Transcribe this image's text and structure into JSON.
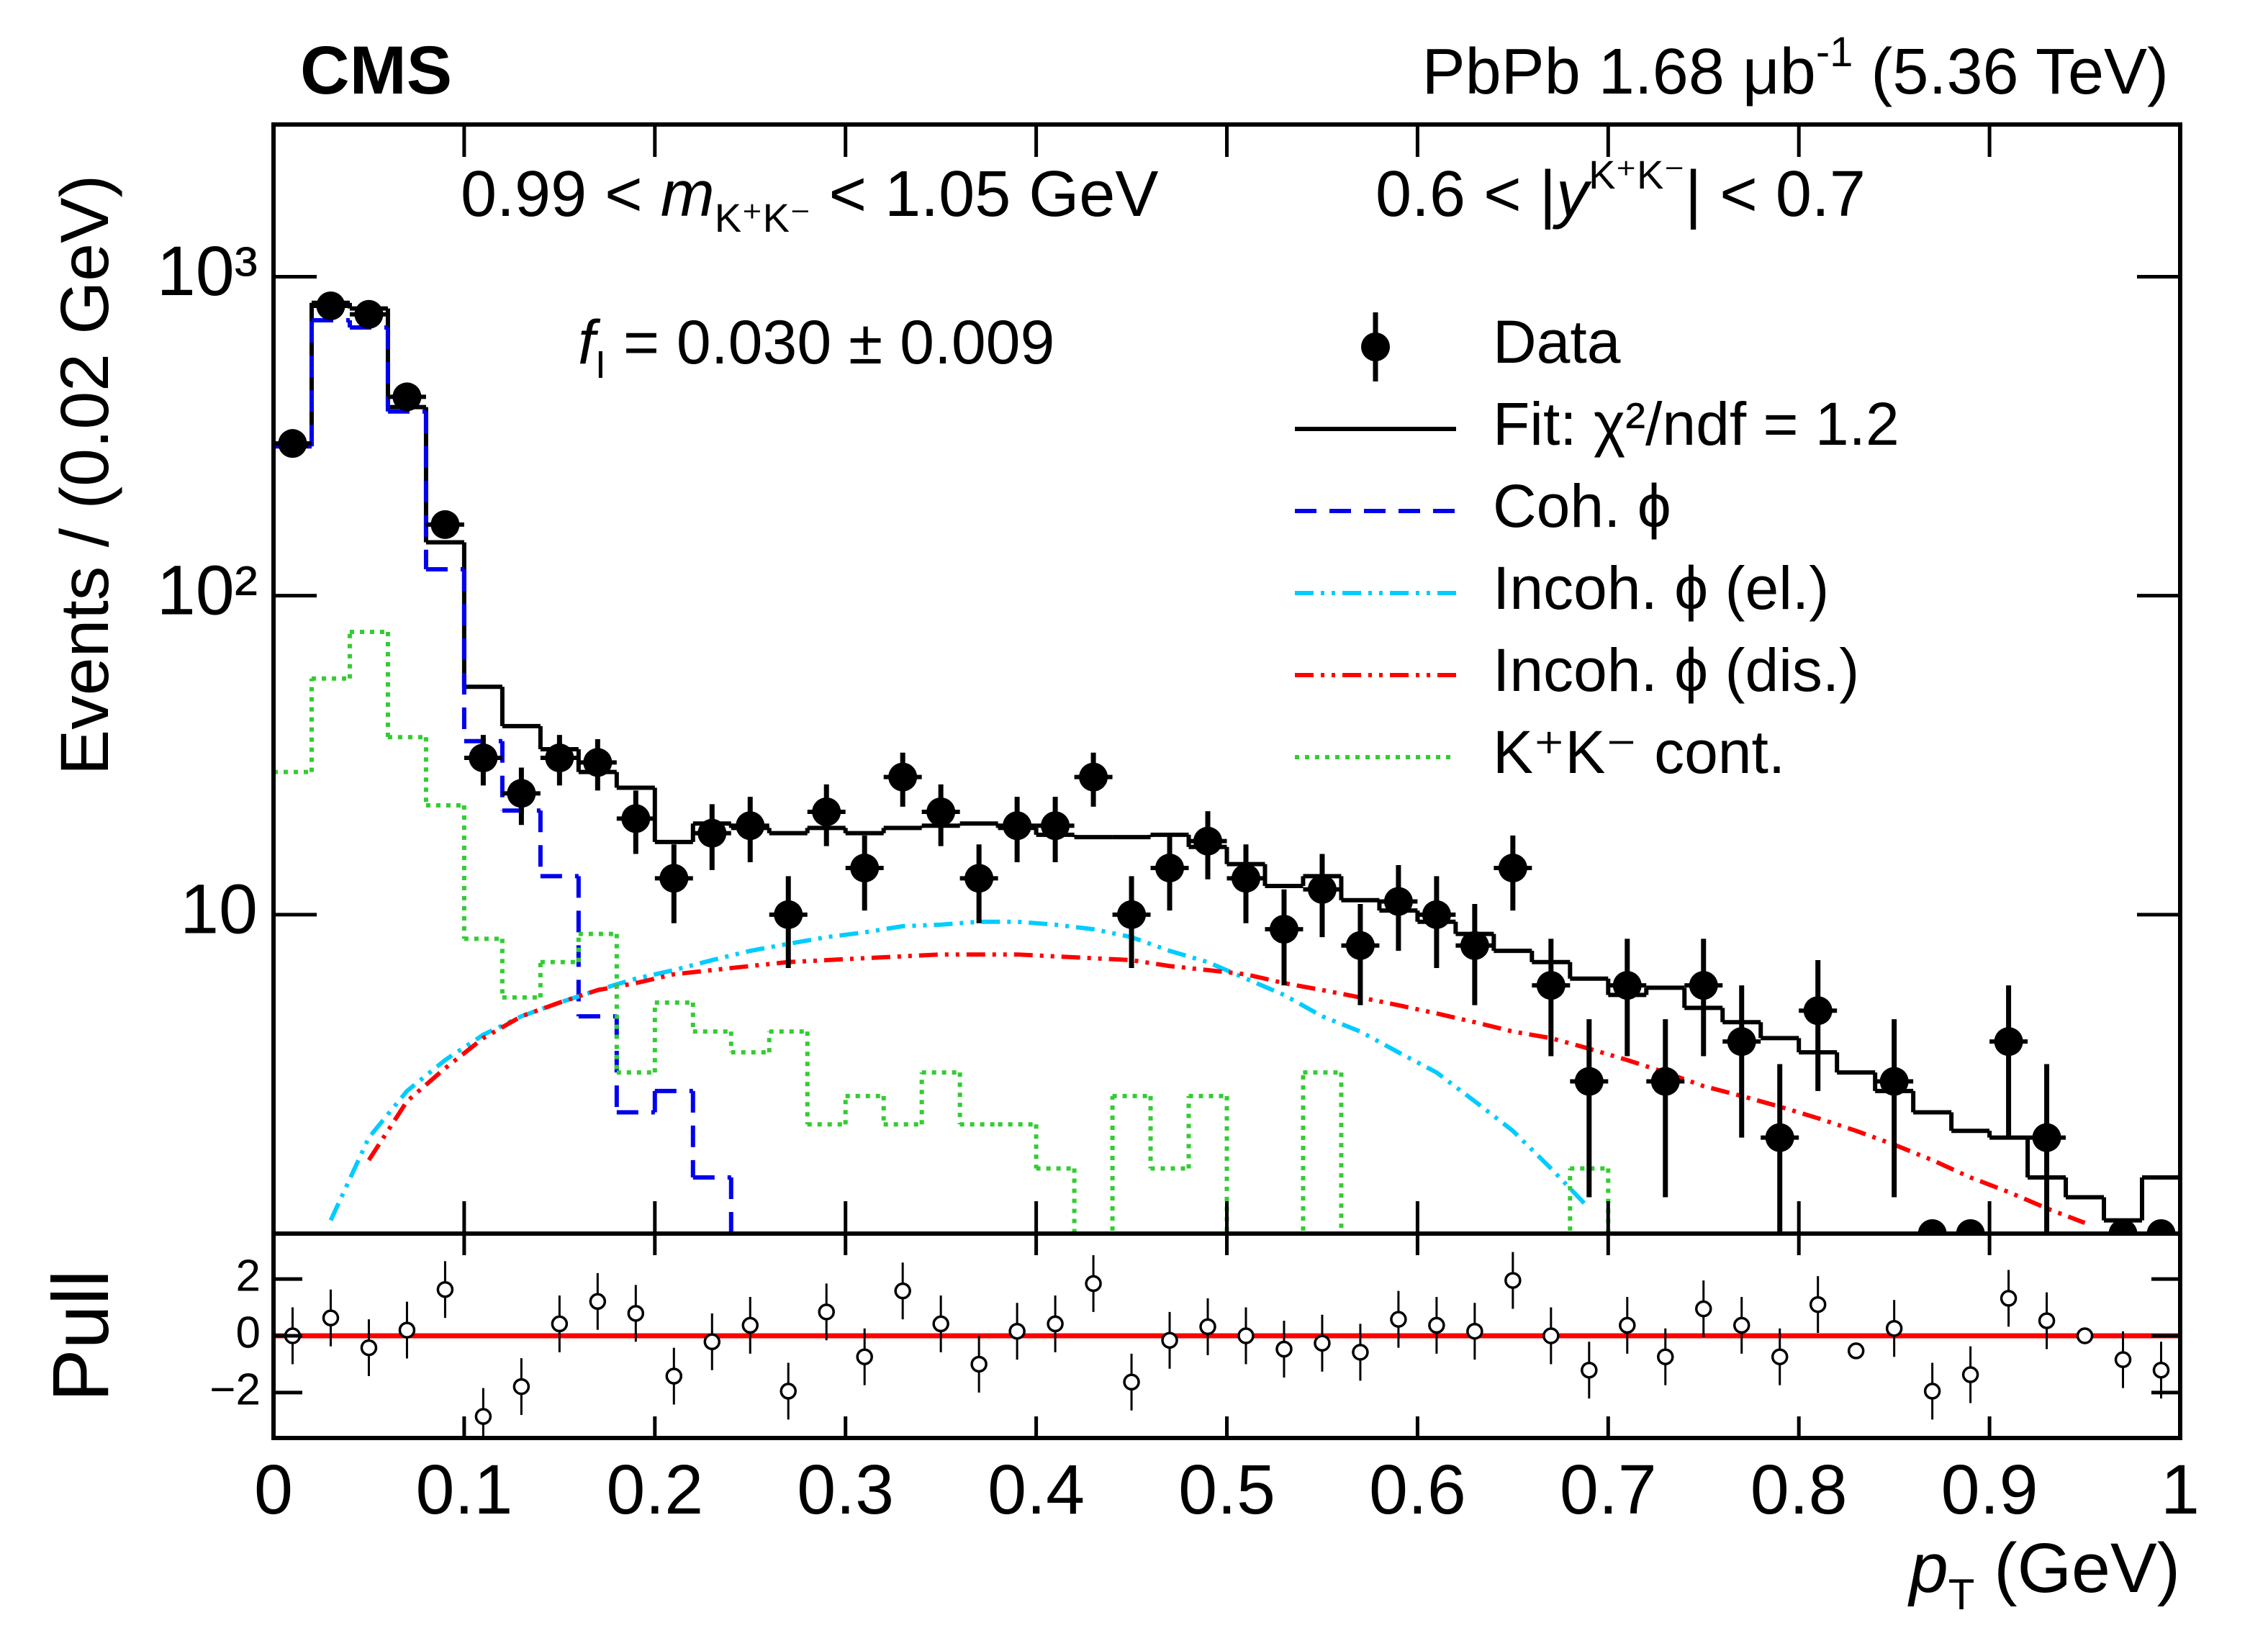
{
  "chart_data": [
    {
      "type": "histogram",
      "title": "CMS",
      "subtitle": [
        "PbPb 1.68 μb",
        "-1",
        " (5.36 TeV)"
      ],
      "annotations": [
        [
          "0.99 < ",
          "m",
          "K⁺K⁻",
          " < 1.05 GeV"
        ],
        [
          "0.6 < |",
          "y",
          "K⁺K⁻",
          "| < 0.7"
        ],
        [
          "f",
          "I",
          " = 0.030 ± 0.009"
        ]
      ],
      "ylabel": "Events / (0.02 GeV)",
      "log_y": true,
      "legend": "upper right",
      "xlim": [
        0,
        1
      ],
      "ylim": [
        1,
        3000
      ],
      "yticks": [
        10,
        {
          "value": 100,
          "label": "10²"
        },
        {
          "value": 1000,
          "label": "10³"
        }
      ],
      "bins": [
        0,
        0.02,
        0.04,
        0.06,
        0.08,
        0.1,
        0.12,
        0.14,
        0.16,
        0.18,
        0.2,
        0.22,
        0.24,
        0.26,
        0.28,
        0.3,
        0.32,
        0.34,
        0.36,
        0.38,
        0.4,
        0.42,
        0.44,
        0.46,
        0.48,
        0.5,
        0.52,
        0.54,
        0.56,
        0.58,
        0.6,
        0.62,
        0.64,
        0.66,
        0.68,
        0.7,
        0.72,
        0.74,
        0.76,
        0.78,
        0.8,
        0.82,
        0.84,
        0.86,
        0.88,
        0.9,
        0.92,
        0.94,
        0.96,
        0.98,
        1
      ],
      "series": [
        {
          "name": "Data",
          "color": "#000000",
          "style": "points",
          "values": [
            300,
            810,
            762,
            420,
            167,
            31,
            24,
            31,
            30,
            20,
            13,
            18,
            19,
            10,
            21,
            14,
            27,
            21,
            13,
            19,
            19,
            27,
            10,
            14,
            17,
            13,
            9,
            12,
            8,
            11,
            10,
            8,
            14,
            6,
            3,
            6,
            3,
            6,
            4,
            2,
            5,
            null,
            3,
            1,
            1,
            4,
            2,
            null,
            1,
            1
          ],
          "errors": [
            17.3,
            28.5,
            27.6,
            20.5,
            12.9,
            5.6,
            4.9,
            5.6,
            5.5,
            4.5,
            3.6,
            4.2,
            4.4,
            3.2,
            4.6,
            3.7,
            5.2,
            4.6,
            3.6,
            4.4,
            4.4,
            5.2,
            3.2,
            3.7,
            4.1,
            3.6,
            3,
            3.5,
            2.8,
            3.3,
            3.2,
            2.8,
            3.7,
            2.4,
            1.7,
            2.4,
            1.7,
            2.4,
            2,
            1.4,
            2.2,
            null,
            1.7,
            0,
            0,
            2,
            1.4,
            null,
            0,
            0
          ]
        },
        {
          "name": "Fit: χ²/ndf = 1.2",
          "color": "#000000",
          "style": "step",
          "dash": "solid",
          "values": [
            294,
            828,
            795,
            390,
            147,
            51.8,
            39,
            33,
            28,
            25,
            16.9,
            19.3,
            18.7,
            18,
            18.7,
            18,
            18.7,
            19,
            19.3,
            18.7,
            17.8,
            17.5,
            17.5,
            17.8,
            16.3,
            14.4,
            12.3,
            13.2,
            11.1,
            10.3,
            9.5,
            8.7,
            7.7,
            7.1,
            6.3,
            5.6,
            5.9,
            5.1,
            4.6,
            4.1,
            3.7,
            3.2,
            2.8,
            2.4,
            2.1,
            2,
            1.5,
            1.3,
            1.1,
            1.5
          ]
        },
        {
          "name": "Coh. ϕ",
          "color": "#0000ee",
          "style": "step",
          "dash": "dashed",
          "values": [
            294,
            730,
            693,
            378,
            121,
            35,
            21.2,
            13.2,
            4.8,
            2.4,
            2.8,
            1.5,
            null,
            null,
            null,
            null,
            null,
            null,
            null,
            null,
            null,
            null,
            null,
            null,
            null,
            null,
            null,
            null,
            null,
            null,
            null,
            null,
            null,
            null,
            null,
            null,
            null,
            null,
            null,
            null,
            null,
            null,
            null,
            null,
            null,
            null,
            null,
            null,
            null,
            null
          ]
        },
        {
          "name": "Incoh. ϕ (el.)",
          "color": "#00ccff",
          "style": "curve",
          "dash": "dash-dot-dot",
          "values": [
            null,
            1.1,
            2,
            2.8,
            3.5,
            4.2,
            4.8,
            5.3,
            5.8,
            6.3,
            6.7,
            7.2,
            7.7,
            8.1,
            8.5,
            8.8,
            9.2,
            9.3,
            9.5,
            9.5,
            9.3,
            9,
            8.5,
            7.7,
            7.1,
            6.3,
            5.6,
            4.8,
            4.3,
            3.7,
            3.2,
            2.6,
            2.1,
            1.6,
            1.2,
            null,
            null,
            null,
            null,
            null,
            null,
            null,
            null,
            null,
            null,
            null,
            null,
            null,
            null,
            null
          ]
        },
        {
          "name": "Incoh. ϕ (dis.)",
          "color": "#ff0000",
          "style": "curve",
          "dash": "dash-dot-dot",
          "values": [
            null,
            null,
            1.7,
            2.6,
            3.3,
            4.1,
            4.8,
            5.3,
            5.8,
            6.1,
            6.5,
            6.7,
            6.9,
            7.1,
            7.2,
            7.3,
            7.4,
            7.5,
            7.5,
            7.5,
            7.4,
            7.3,
            7.2,
            6.9,
            6.7,
            6.5,
            6.1,
            5.8,
            5.5,
            5.2,
            4.9,
            4.6,
            4.3,
            4.1,
            3.8,
            3.5,
            3.2,
            2.9,
            2.7,
            2.5,
            2.3,
            2.1,
            1.9,
            1.7,
            1.5,
            1.35,
            1.2,
            1.08,
            null,
            null
          ]
        },
        {
          "name": "K⁺K⁻ cont.",
          "color": "#33cc33",
          "style": "step",
          "dash": "dotted",
          "values": [
            28,
            55,
            77,
            36,
            22,
            8.4,
            5.5,
            7.1,
            8.7,
            3.2,
            5.3,
            4.3,
            3.7,
            4.3,
            2.2,
            2.7,
            2.2,
            3.2,
            2.2,
            2.2,
            1.6,
            null,
            2.7,
            1.6,
            2.7,
            null,
            null,
            3.2,
            null,
            null,
            null,
            null,
            null,
            null,
            1.6,
            null,
            null,
            null,
            null,
            null,
            null,
            null,
            null,
            null,
            null,
            null,
            null,
            null,
            null,
            null
          ]
        }
      ]
    },
    {
      "type": "scatter",
      "ylabel": "Pull",
      "xlabel": [
        "p",
        "T",
        " (GeV)"
      ],
      "xlim": [
        0,
        1
      ],
      "ylim": [
        -3.6,
        3.6
      ],
      "xticks": [
        0,
        0.1,
        0.2,
        0.3,
        0.4,
        0.5,
        0.6,
        0.7,
        0.8,
        0.9,
        1
      ],
      "yticks": [
        {
          "value": -2,
          "label": "−2"
        },
        0,
        2
      ],
      "reference_line": {
        "value": 0,
        "color": "#ff0000"
      },
      "x": [
        0.01,
        0.03,
        0.05,
        0.07,
        0.09,
        0.11,
        0.13,
        0.15,
        0.17,
        0.19,
        0.21,
        0.23,
        0.25,
        0.27,
        0.29,
        0.31,
        0.33,
        0.35,
        0.37,
        0.39,
        0.41,
        0.43,
        0.45,
        0.47,
        0.49,
        0.51,
        0.53,
        0.55,
        0.57,
        0.59,
        0.61,
        0.63,
        0.65,
        0.67,
        0.69,
        0.71,
        0.73,
        0.75,
        0.77,
        0.79,
        0.81,
        0.83,
        0.85,
        0.87,
        0.89,
        0.91,
        0.93,
        0.95,
        0.97,
        0.99
      ],
      "values": [
        0,
        0.63,
        -0.42,
        0.2,
        1.63,
        -2.84,
        -1.79,
        0.42,
        1.21,
        0.79,
        -1.42,
        -0.21,
        0.37,
        -1.95,
        0.84,
        -0.74,
        1.58,
        0.42,
        -1,
        0.16,
        0.42,
        1.84,
        -1.63,
        -0.16,
        0.32,
        0,
        -0.47,
        -0.26,
        -0.58,
        0.58,
        0.37,
        0.16,
        1.95,
        0,
        -1.21,
        0.37,
        -0.74,
        0.95,
        0.37,
        -0.74,
        1.1,
        -0.53,
        0.26,
        -1.95,
        -1.37,
        1.32,
        0.53,
        0,
        -0.84,
        -1.21
      ],
      "errors": [
        1,
        1,
        1,
        1,
        1,
        1,
        1,
        1,
        1,
        1,
        1,
        1,
        1,
        1,
        1,
        1,
        1,
        1,
        1,
        1,
        1,
        1,
        1,
        1,
        1,
        1,
        1,
        1,
        1,
        1,
        1,
        1,
        1,
        1,
        1,
        1,
        1,
        1,
        1,
        1,
        1,
        0,
        1,
        1,
        1,
        1,
        1,
        0,
        1,
        1
      ]
    }
  ]
}
